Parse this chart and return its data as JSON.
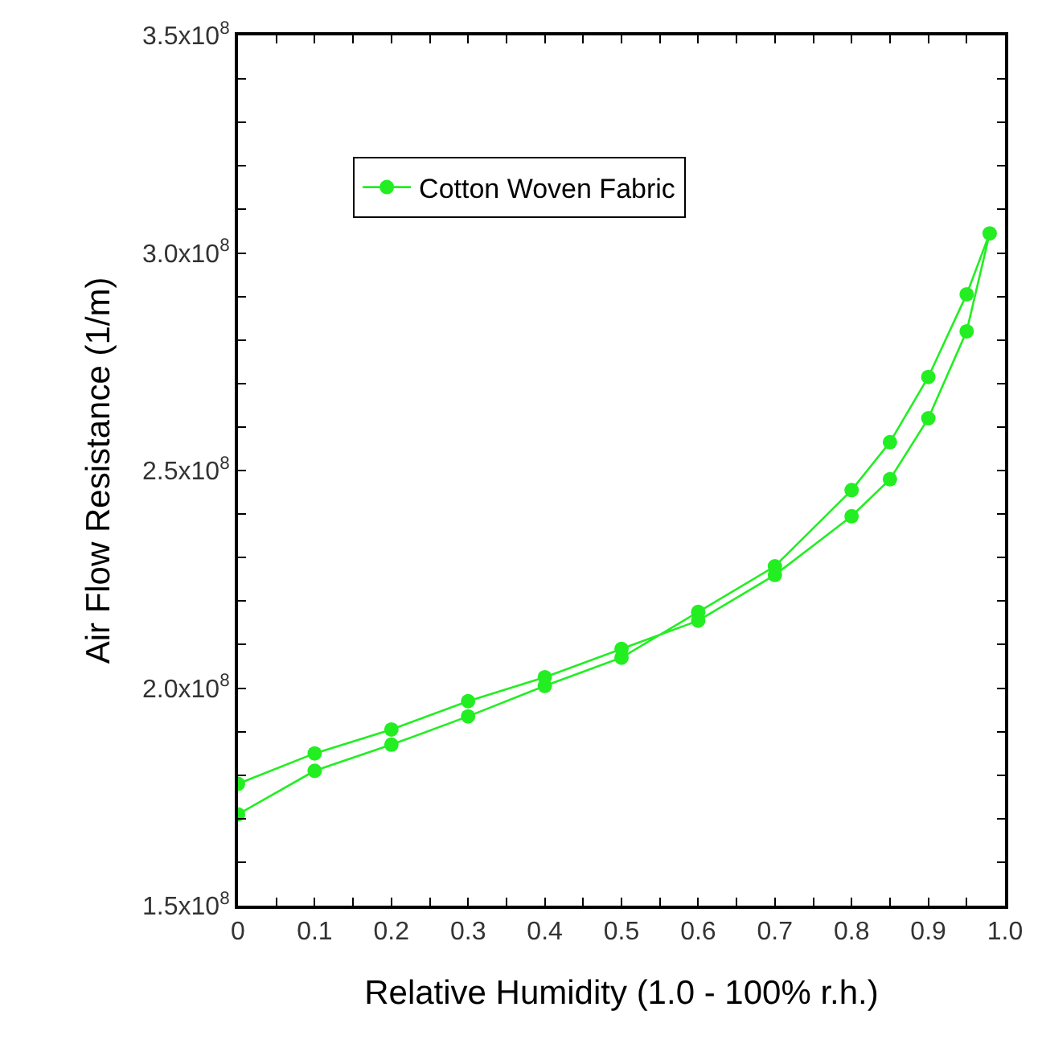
{
  "chart_data": {
    "type": "line",
    "xlabel": "Relative Humidity (1.0 - 100% r.h.)",
    "ylabel": "Air Flow Resistance (1/m)",
    "series": [
      {
        "name": "Cotton Woven Fabric",
        "color": "#22ee22",
        "x": [
          0,
          0.1,
          0.2,
          0.3,
          0.4,
          0.5,
          0.6,
          0.7,
          0.8,
          0.85,
          0.9,
          0.95,
          0.98,
          0.95,
          0.9,
          0.85,
          0.8,
          0.7,
          0.6,
          0.5,
          0.4,
          0.3,
          0.2,
          0.1,
          0
        ],
        "values": [
          171000000,
          181000000,
          187000000,
          193500000,
          200500000,
          207000000,
          217500000,
          228000000,
          245500000,
          256500000,
          271500000,
          290500000,
          304500000,
          282000000,
          262000000,
          248000000,
          239500000,
          226000000,
          215500000,
          209000000,
          202500000,
          197000000,
          190500000,
          185000000,
          178000000
        ]
      }
    ],
    "xlim": [
      0,
      1
    ],
    "ylim": [
      150000000,
      350000000
    ],
    "xticks": [
      0,
      {
        "value": 0.05,
        "label": null
      },
      0.1,
      {
        "value": 0.15,
        "label": null
      },
      0.2,
      {
        "value": 0.25,
        "label": null
      },
      0.3,
      {
        "value": 0.35,
        "label": null
      },
      0.4,
      {
        "value": 0.45,
        "label": null
      },
      0.5,
      {
        "value": 0.55,
        "label": null
      },
      0.6,
      {
        "value": 0.65,
        "label": null
      },
      0.7,
      {
        "value": 0.75,
        "label": null
      },
      0.8,
      {
        "value": 0.85,
        "label": null
      },
      0.9,
      {
        "value": 0.95,
        "label": null
      },
      {
        "value": 1,
        "label": "1.0"
      }
    ],
    "yticks": [
      {
        "value": 150000000,
        "label": "1.5x10$^{8}$"
      },
      {
        "value": 160000000,
        "label": null
      },
      {
        "value": 170000000,
        "label": null
      },
      {
        "value": 180000000,
        "label": null
      },
      {
        "value": 190000000,
        "label": null
      },
      {
        "value": 200000000,
        "label": "2.0x10$^{8}$"
      },
      {
        "value": 210000000,
        "label": null
      },
      {
        "value": 220000000,
        "label": null
      },
      {
        "value": 230000000,
        "label": null
      },
      {
        "value": 240000000,
        "label": null
      },
      {
        "value": 250000000,
        "label": "2.5x10$^{8}$"
      },
      {
        "value": 260000000,
        "label": null
      },
      {
        "value": 270000000,
        "label": null
      },
      {
        "value": 280000000,
        "label": null
      },
      {
        "value": 290000000,
        "label": null
      },
      {
        "value": 300000000,
        "label": "3.0x10$^{8}$"
      },
      {
        "value": 310000000,
        "label": null
      },
      {
        "value": 320000000,
        "label": null
      },
      {
        "value": 330000000,
        "label": null
      },
      {
        "value": 340000000,
        "label": null
      },
      {
        "value": 350000000,
        "label": "3.5x10$^{8}$"
      }
    ],
    "grid": false,
    "legend": "top left",
    "marker": "circle",
    "line_style": "solid"
  }
}
